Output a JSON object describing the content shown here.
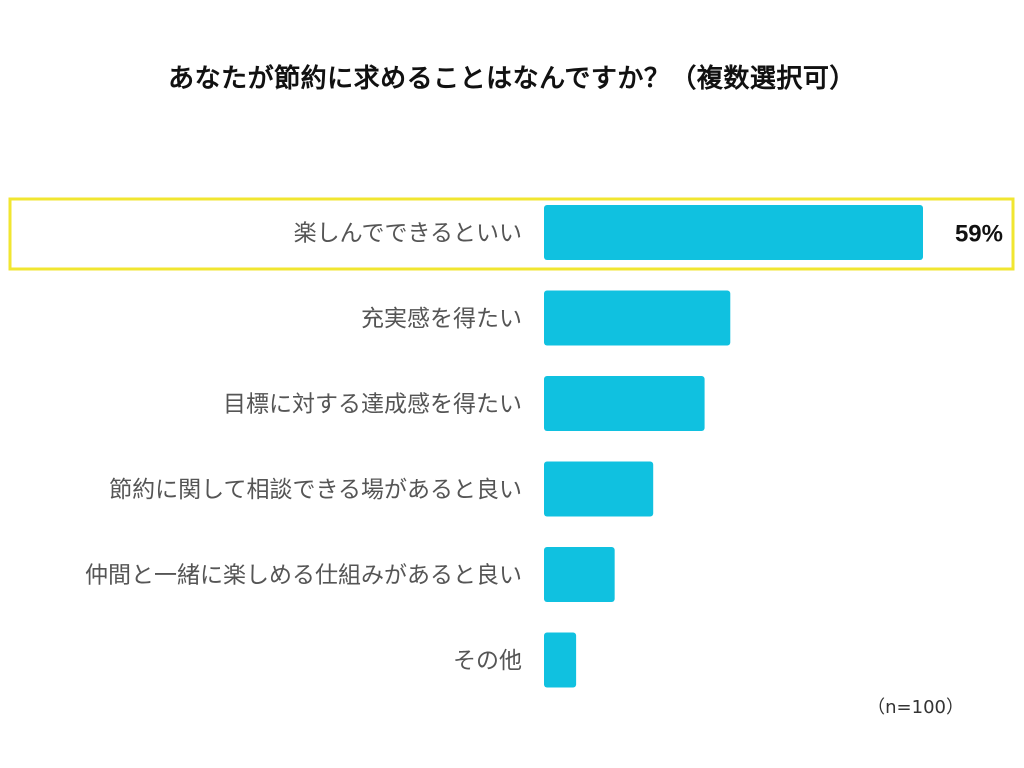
{
  "chart_data": {
    "type": "bar",
    "orientation": "horizontal",
    "title": "あなたが節約に求めることはなんですか？（複数選択可）",
    "categories": [
      "楽しんでできるといい",
      "充実感を得たい",
      "目標に対する達成感を得たい",
      "節約に関して相談できる場があると良い",
      "仲間と一緒に楽しめる仕組みがあると良い",
      "その他"
    ],
    "values": [
      59,
      29,
      25,
      17,
      11,
      5
    ],
    "unit": "%",
    "xlim": [
      0,
      60
    ],
    "data_labels": [
      {
        "category_index": 0,
        "text": "59%"
      }
    ],
    "highlight_category_index": 0,
    "grid": false,
    "legend": "none",
    "note": "（n=100）"
  },
  "colors": {
    "bar": "#10c1e0",
    "highlight_border": "#f1e631",
    "label_text": "#555555",
    "value_text": "#111111"
  }
}
